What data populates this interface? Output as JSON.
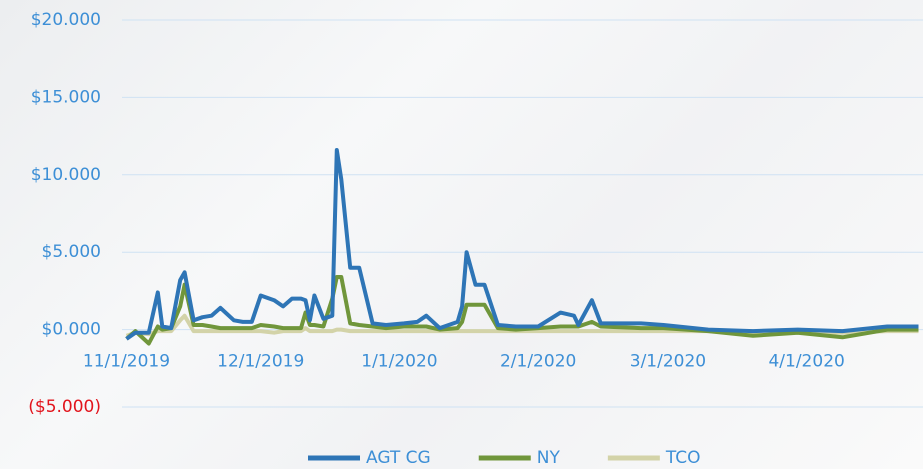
{
  "chart_data": {
    "type": "line",
    "x": [
      "2019-11-01",
      "2019-11-03",
      "2019-11-06",
      "2019-11-08",
      "2019-11-09",
      "2019-11-11",
      "2019-11-13",
      "2019-11-14",
      "2019-11-16",
      "2019-11-18",
      "2019-11-20",
      "2019-11-22",
      "2019-11-25",
      "2019-11-27",
      "2019-11-29",
      "2019-12-01",
      "2019-12-04",
      "2019-12-06",
      "2019-12-08",
      "2019-12-10",
      "2019-12-11",
      "2019-12-12",
      "2019-12-13",
      "2019-12-15",
      "2019-12-17",
      "2019-12-18",
      "2019-12-19",
      "2019-12-21",
      "2019-12-23",
      "2019-12-26",
      "2019-12-29",
      "2020-01-02",
      "2020-01-05",
      "2020-01-07",
      "2020-01-10",
      "2020-01-14",
      "2020-01-15",
      "2020-01-16",
      "2020-01-18",
      "2020-01-20",
      "2020-01-23",
      "2020-01-27",
      "2020-02-01",
      "2020-02-06",
      "2020-02-09",
      "2020-02-10",
      "2020-02-13",
      "2020-02-15",
      "2020-02-24",
      "2020-02-29",
      "2020-03-10",
      "2020-03-20",
      "2020-03-30",
      "2020-04-09",
      "2020-04-19",
      "2020-04-26"
    ],
    "series": [
      {
        "name": "AGT CG",
        "color": "#2e75b6",
        "values": [
          -0.6,
          -0.2,
          -0.2,
          2.4,
          0.2,
          0.1,
          3.2,
          3.7,
          0.6,
          0.8,
          0.9,
          1.4,
          0.6,
          0.5,
          0.5,
          2.2,
          1.9,
          1.5,
          2.0,
          2.0,
          1.9,
          0.6,
          2.2,
          0.7,
          0.9,
          11.6,
          9.7,
          4.0,
          4.0,
          0.4,
          0.3,
          0.4,
          0.5,
          0.9,
          0.1,
          0.5,
          1.5,
          5.0,
          2.9,
          2.9,
          0.3,
          0.2,
          0.2,
          1.1,
          0.9,
          0.3,
          1.9,
          0.4,
          0.4,
          0.3,
          0.0,
          -0.1,
          0.0,
          -0.1,
          0.2,
          0.2
        ]
      },
      {
        "name": "NY",
        "color": "#70963b",
        "values": [
          -0.6,
          -0.1,
          -0.9,
          0.2,
          0.0,
          0.1,
          1.5,
          2.9,
          0.3,
          0.3,
          0.2,
          0.1,
          0.1,
          0.1,
          0.1,
          0.3,
          0.2,
          0.1,
          0.1,
          0.1,
          1.1,
          0.3,
          0.3,
          0.2,
          2.0,
          3.4,
          3.4,
          0.4,
          0.3,
          0.2,
          0.1,
          0.2,
          0.2,
          0.2,
          0.0,
          0.1,
          0.5,
          1.6,
          1.6,
          1.6,
          0.1,
          0.0,
          0.1,
          0.2,
          0.2,
          0.2,
          0.5,
          0.2,
          0.1,
          0.1,
          -0.1,
          -0.4,
          -0.2,
          -0.5,
          0.0,
          0.0
        ]
      },
      {
        "name": "TCO",
        "color": "#d3d3a8",
        "values": [
          -0.4,
          -0.2,
          -0.3,
          -0.1,
          -0.1,
          -0.1,
          0.6,
          0.9,
          -0.1,
          -0.1,
          -0.1,
          -0.1,
          -0.1,
          -0.1,
          -0.1,
          -0.1,
          -0.2,
          -0.1,
          -0.1,
          -0.1,
          0.1,
          -0.1,
          -0.1,
          -0.1,
          -0.1,
          0.0,
          0.0,
          -0.1,
          -0.1,
          -0.1,
          -0.1,
          -0.1,
          -0.1,
          -0.1,
          -0.1,
          -0.1,
          -0.1,
          -0.1,
          -0.1,
          -0.1,
          -0.1,
          -0.1,
          -0.1,
          -0.1,
          -0.1,
          -0.1,
          -0.1,
          -0.1,
          -0.1,
          -0.1,
          -0.1,
          -0.2,
          -0.1,
          -0.2,
          -0.1,
          -0.1
        ]
      }
    ],
    "xlim": [
      "2019-10-31",
      "2020-04-27"
    ],
    "xticks": [
      {
        "value": "2019-11-01",
        "label": "11/1/2019"
      },
      {
        "value": "2019-12-01",
        "label": "12/1/2019"
      },
      {
        "value": "2020-01-01",
        "label": "1/1/2020"
      },
      {
        "value": "2020-02-01",
        "label": "2/1/2020"
      },
      {
        "value": "2020-03-01",
        "label": "3/1/2020"
      },
      {
        "value": "2020-04-01",
        "label": "4/1/2020"
      }
    ],
    "ylim": [
      -5,
      20
    ],
    "yticks": [
      {
        "value": -5,
        "label": "($5.000)"
      },
      {
        "value": 0,
        "label": "$0.000"
      },
      {
        "value": 5,
        "label": "$5.000"
      },
      {
        "value": 10,
        "label": "$10.000"
      },
      {
        "value": 15,
        "label": "$15.000"
      },
      {
        "value": 20,
        "label": "$20.000"
      }
    ],
    "grid": true,
    "tick_color": "#3d8fd6",
    "negative_tick_color": "#e2141c",
    "grid_color": "#cfe2f3",
    "legend": "bottom"
  }
}
